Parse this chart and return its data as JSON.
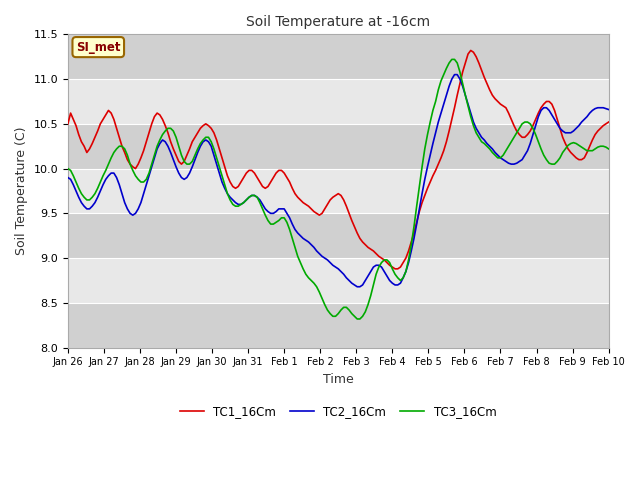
{
  "title": "Soil Temperature at -16cm",
  "xlabel": "Time",
  "ylabel": "Soil Temperature (C)",
  "ylim": [
    8.0,
    11.5
  ],
  "annotation_text": "SI_met",
  "annotation_bg": "#ffffcc",
  "annotation_border": "#996600",
  "annotation_text_color": "#880000",
  "fig_bg": "#ffffff",
  "plot_bg": "#e8e8e8",
  "band_color": "#d8d8d8",
  "tc1_color": "#dd0000",
  "tc2_color": "#0000cc",
  "tc3_color": "#00aa00",
  "legend_labels": [
    "TC1_16Cm",
    "TC2_16Cm",
    "TC3_16Cm"
  ],
  "xtick_labels": [
    "Jan 26",
    "Jan 27",
    "Jan 28",
    "Jan 29",
    "Jan 30",
    "Jan 31",
    "Feb 1",
    "Feb 2",
    "Feb 3",
    "Feb 4",
    "Feb 5",
    "Feb 6",
    "Feb 7",
    "Feb 8",
    "Feb 9",
    "Feb 10"
  ],
  "yticks": [
    8.0,
    8.5,
    9.0,
    9.5,
    10.0,
    10.5,
    11.0,
    11.5
  ],
  "tc1_values": [
    10.5,
    10.62,
    10.55,
    10.48,
    10.38,
    10.3,
    10.25,
    10.18,
    10.22,
    10.28,
    10.35,
    10.42,
    10.5,
    10.55,
    10.6,
    10.65,
    10.62,
    10.55,
    10.45,
    10.35,
    10.25,
    10.18,
    10.1,
    10.05,
    10.02,
    10.0,
    10.05,
    10.12,
    10.2,
    10.3,
    10.4,
    10.5,
    10.58,
    10.62,
    10.6,
    10.55,
    10.48,
    10.4,
    10.3,
    10.22,
    10.15,
    10.08,
    10.05,
    10.08,
    10.15,
    10.22,
    10.3,
    10.35,
    10.4,
    10.45,
    10.48,
    10.5,
    10.48,
    10.45,
    10.4,
    10.32,
    10.22,
    10.12,
    10.02,
    9.92,
    9.85,
    9.8,
    9.78,
    9.8,
    9.85,
    9.9,
    9.95,
    9.98,
    9.98,
    9.95,
    9.9,
    9.85,
    9.8,
    9.78,
    9.8,
    9.85,
    9.9,
    9.95,
    9.98,
    9.98,
    9.95,
    9.9,
    9.85,
    9.78,
    9.72,
    9.68,
    9.65,
    9.62,
    9.6,
    9.58,
    9.55,
    9.52,
    9.5,
    9.48,
    9.5,
    9.55,
    9.6,
    9.65,
    9.68,
    9.7,
    9.72,
    9.7,
    9.65,
    9.58,
    9.5,
    9.42,
    9.35,
    9.28,
    9.22,
    9.18,
    9.15,
    9.12,
    9.1,
    9.08,
    9.05,
    9.02,
    9.0,
    8.98,
    8.95,
    8.92,
    8.9,
    8.88,
    8.88,
    8.9,
    8.95,
    9.0,
    9.08,
    9.18,
    9.28,
    9.4,
    9.52,
    9.62,
    9.7,
    9.78,
    9.85,
    9.92,
    9.98,
    10.05,
    10.12,
    10.2,
    10.3,
    10.42,
    10.55,
    10.68,
    10.82,
    10.95,
    11.08,
    11.18,
    11.28,
    11.32,
    11.3,
    11.25,
    11.18,
    11.1,
    11.02,
    10.95,
    10.88,
    10.82,
    10.78,
    10.75,
    10.72,
    10.7,
    10.68,
    10.62,
    10.55,
    10.48,
    10.42,
    10.38,
    10.35,
    10.35,
    10.38,
    10.42,
    10.48,
    10.55,
    10.62,
    10.68,
    10.72,
    10.75,
    10.75,
    10.72,
    10.65,
    10.55,
    10.45,
    10.35,
    10.28,
    10.22,
    10.18,
    10.15,
    10.12,
    10.1,
    10.1,
    10.12,
    10.18,
    10.25,
    10.32,
    10.38,
    10.42,
    10.45,
    10.48,
    10.5,
    10.52
  ],
  "tc2_values": [
    9.9,
    9.88,
    9.82,
    9.75,
    9.68,
    9.62,
    9.58,
    9.55,
    9.55,
    9.58,
    9.62,
    9.68,
    9.75,
    9.82,
    9.88,
    9.92,
    9.95,
    9.95,
    9.9,
    9.82,
    9.72,
    9.62,
    9.55,
    9.5,
    9.48,
    9.5,
    9.55,
    9.62,
    9.72,
    9.82,
    9.92,
    10.02,
    10.12,
    10.22,
    10.28,
    10.32,
    10.3,
    10.25,
    10.18,
    10.1,
    10.02,
    9.95,
    9.9,
    9.88,
    9.9,
    9.95,
    10.02,
    10.1,
    10.18,
    10.25,
    10.3,
    10.32,
    10.3,
    10.25,
    10.15,
    10.05,
    9.95,
    9.85,
    9.78,
    9.72,
    9.68,
    9.65,
    9.62,
    9.6,
    9.6,
    9.62,
    9.65,
    9.68,
    9.7,
    9.7,
    9.68,
    9.65,
    9.6,
    9.55,
    9.52,
    9.5,
    9.5,
    9.52,
    9.55,
    9.55,
    9.55,
    9.5,
    9.45,
    9.38,
    9.32,
    9.28,
    9.25,
    9.22,
    9.2,
    9.18,
    9.15,
    9.12,
    9.08,
    9.05,
    9.02,
    9.0,
    8.98,
    8.95,
    8.92,
    8.9,
    8.88,
    8.85,
    8.82,
    8.78,
    8.75,
    8.72,
    8.7,
    8.68,
    8.68,
    8.7,
    8.75,
    8.8,
    8.85,
    8.9,
    8.92,
    8.92,
    8.9,
    8.85,
    8.8,
    8.75,
    8.72,
    8.7,
    8.7,
    8.72,
    8.78,
    8.85,
    8.95,
    9.08,
    9.22,
    9.38,
    9.55,
    9.72,
    9.88,
    10.02,
    10.15,
    10.28,
    10.4,
    10.52,
    10.62,
    10.72,
    10.82,
    10.92,
    11.0,
    11.05,
    11.05,
    11.0,
    10.92,
    10.82,
    10.72,
    10.62,
    10.52,
    10.45,
    10.4,
    10.35,
    10.32,
    10.28,
    10.25,
    10.22,
    10.18,
    10.15,
    10.12,
    10.1,
    10.08,
    10.06,
    10.05,
    10.05,
    10.06,
    10.08,
    10.1,
    10.15,
    10.2,
    10.28,
    10.38,
    10.48,
    10.58,
    10.65,
    10.68,
    10.68,
    10.65,
    10.6,
    10.55,
    10.5,
    10.45,
    10.42,
    10.4,
    10.4,
    10.4,
    10.42,
    10.45,
    10.48,
    10.52,
    10.55,
    10.58,
    10.62,
    10.65,
    10.67,
    10.68,
    10.68,
    10.68,
    10.67,
    10.66
  ],
  "tc3_values": [
    10.0,
    9.98,
    9.92,
    9.85,
    9.78,
    9.72,
    9.68,
    9.65,
    9.65,
    9.68,
    9.72,
    9.78,
    9.85,
    9.92,
    9.98,
    10.05,
    10.12,
    10.18,
    10.22,
    10.25,
    10.25,
    10.22,
    10.15,
    10.05,
    9.98,
    9.92,
    9.88,
    9.85,
    9.85,
    9.88,
    9.95,
    10.05,
    10.15,
    10.25,
    10.32,
    10.38,
    10.42,
    10.45,
    10.45,
    10.42,
    10.35,
    10.25,
    10.15,
    10.08,
    10.05,
    10.05,
    10.08,
    10.15,
    10.22,
    10.28,
    10.32,
    10.35,
    10.35,
    10.3,
    10.22,
    10.12,
    10.02,
    9.92,
    9.82,
    9.72,
    9.65,
    9.6,
    9.58,
    9.58,
    9.6,
    9.62,
    9.65,
    9.68,
    9.7,
    9.7,
    9.68,
    9.62,
    9.55,
    9.48,
    9.42,
    9.38,
    9.38,
    9.4,
    9.42,
    9.45,
    9.45,
    9.4,
    9.32,
    9.22,
    9.12,
    9.02,
    8.95,
    8.88,
    8.82,
    8.78,
    8.75,
    8.72,
    8.68,
    8.62,
    8.55,
    8.48,
    8.42,
    8.38,
    8.35,
    8.35,
    8.38,
    8.42,
    8.45,
    8.45,
    8.42,
    8.38,
    8.35,
    8.32,
    8.32,
    8.35,
    8.4,
    8.48,
    8.58,
    8.7,
    8.82,
    8.9,
    8.95,
    8.98,
    8.98,
    8.95,
    8.88,
    8.82,
    8.78,
    8.75,
    8.78,
    8.85,
    8.98,
    9.15,
    9.35,
    9.58,
    9.8,
    10.02,
    10.22,
    10.38,
    10.52,
    10.65,
    10.75,
    10.88,
    10.98,
    11.05,
    11.12,
    11.18,
    11.22,
    11.22,
    11.18,
    11.08,
    10.95,
    10.82,
    10.7,
    10.58,
    10.48,
    10.4,
    10.35,
    10.3,
    10.28,
    10.25,
    10.22,
    10.18,
    10.15,
    10.12,
    10.12,
    10.15,
    10.2,
    10.25,
    10.3,
    10.35,
    10.4,
    10.45,
    10.5,
    10.52,
    10.52,
    10.5,
    10.45,
    10.38,
    10.3,
    10.22,
    10.15,
    10.1,
    10.06,
    10.05,
    10.05,
    10.08,
    10.12,
    10.18,
    10.22,
    10.26,
    10.28,
    10.29,
    10.28,
    10.26,
    10.24,
    10.22,
    10.2,
    10.2,
    10.2,
    10.22,
    10.24,
    10.25,
    10.25,
    10.24,
    10.22
  ]
}
